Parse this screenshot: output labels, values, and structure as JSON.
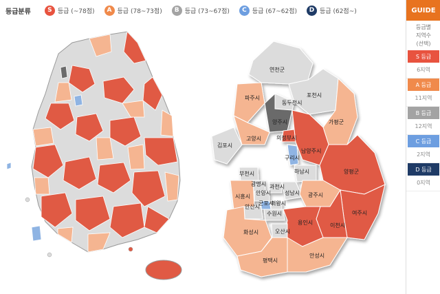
{
  "legend": {
    "title": "등급분류",
    "items": [
      {
        "badge": "S",
        "label": "등급 (~78점)",
        "color": "#e8533f"
      },
      {
        "badge": "A",
        "label": "등급 (78~73점)",
        "color": "#f08a4b"
      },
      {
        "badge": "B",
        "label": "등급 (73~67점)",
        "color": "#a3a3a3"
      },
      {
        "badge": "C",
        "label": "등급 (67~62점)",
        "color": "#6d9ee0"
      },
      {
        "badge": "D",
        "label": "등급 (62점~)",
        "color": "#1f3b66"
      }
    ]
  },
  "guide": {
    "title": "GUIDE",
    "desc": [
      "등급별",
      "지역수",
      "(선택)"
    ],
    "grades": [
      {
        "label": "S 등급",
        "count": "6지역",
        "color": "#e8533f"
      },
      {
        "label": "A 등급",
        "count": "11지역",
        "color": "#f08a4b"
      },
      {
        "label": "B 등급",
        "count": "12지역",
        "color": "#a3a3a3"
      },
      {
        "label": "C 등급",
        "count": "2지역",
        "color": "#6d9ee0"
      },
      {
        "label": "D 등급",
        "count": "0지역",
        "color": "#1f3b66"
      }
    ]
  },
  "map_colors": {
    "s": "#e05a44",
    "a": "#f5b591",
    "b": "#dcdcdc",
    "c": "#8fb4e3",
    "d": "#6b6b6b"
  },
  "regions": {
    "yeoncheon": "연천군",
    "pocheon": "포천시",
    "dongducheon": "동두천시",
    "paju": "파주시",
    "gapyeong": "가평군",
    "yangju": "양주시",
    "uijeongbu": "의정부시",
    "gimpo": "김포시",
    "goyang": "고양시",
    "namyangju": "남양주시",
    "guri": "구리시",
    "hanam": "하남시",
    "yangpyeong": "양평군",
    "bucheon": "부천시",
    "gwangmyeong": "광명시",
    "gwacheon": "과천시",
    "anyang": "안양시",
    "seongnam": "성남시",
    "siheung": "시흥시",
    "gunpo": "군포시",
    "uiwang": "의왕시",
    "ansan": "안산시",
    "gwangju": "광주시",
    "suwon": "수원시",
    "yeoju": "여주시",
    "icheon": "이천시",
    "yongin": "용인시",
    "osan": "오산시",
    "hwaseong": "화성시",
    "pyeongtaek": "평택시",
    "anseong": "안성시"
  }
}
